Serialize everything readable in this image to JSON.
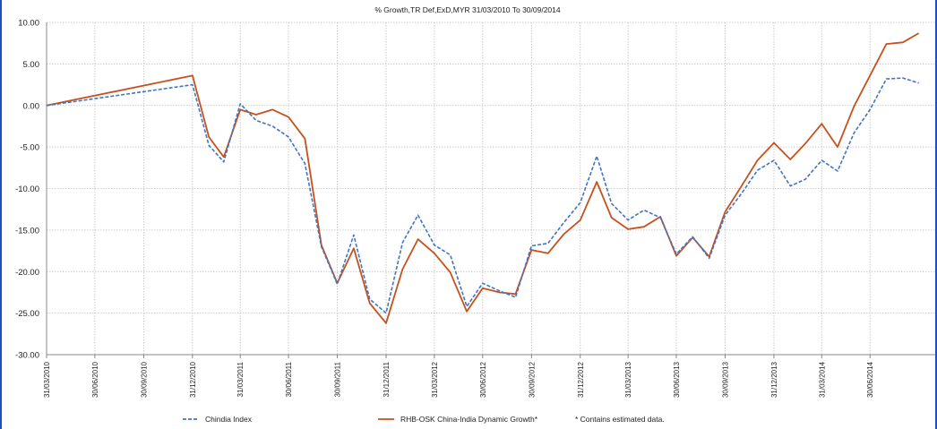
{
  "chart_data": {
    "type": "line",
    "title": "% Growth,TR Def,ExD,MYR 31/03/2010 To 30/09/2014",
    "xlabel": "",
    "ylabel": "",
    "ylim": [
      -30,
      10
    ],
    "yticks": [
      "10.00",
      "5.00",
      "0.00",
      "-5.00",
      "-10.00",
      "-15.00",
      "-20.00",
      "-25.00",
      "-30.00"
    ],
    "xlim": [
      "31/03/2010",
      "31/10/2014"
    ],
    "xticks": [
      "31/03/2010",
      "30/06/2010",
      "30/09/2010",
      "31/12/2010",
      "31/03/2011",
      "30/06/2011",
      "30/09/2011",
      "31/12/2011",
      "31/03/2012",
      "30/06/2012",
      "30/09/2012",
      "31/12/2012",
      "31/03/2013",
      "30/06/2013",
      "30/09/2013",
      "31/12/2013",
      "31/03/2014",
      "30/06/2014"
    ],
    "grid": true,
    "legend_position": "bottom",
    "series": [
      {
        "name": "Chindia Index",
        "color": "#3f74c7",
        "dash": "dashed",
        "points": [
          [
            "31/03/2010",
            0.0
          ],
          [
            "31/12/2010",
            2.5
          ],
          [
            "31/01/2011",
            -4.8
          ],
          [
            "28/02/2011",
            -6.8
          ],
          [
            "31/03/2011",
            0.2
          ],
          [
            "30/04/2011",
            -1.8
          ],
          [
            "31/05/2011",
            -2.5
          ],
          [
            "30/06/2011",
            -3.8
          ],
          [
            "31/07/2011",
            -7.0
          ],
          [
            "31/08/2011",
            -17.0
          ],
          [
            "30/09/2011",
            -21.5
          ],
          [
            "31/10/2011",
            -15.6
          ],
          [
            "30/11/2011",
            -23.3
          ],
          [
            "31/12/2011",
            -25.0
          ],
          [
            "31/01/2012",
            -16.5
          ],
          [
            "29/02/2012",
            -13.2
          ],
          [
            "31/03/2012",
            -16.8
          ],
          [
            "30/04/2012",
            -18.0
          ],
          [
            "31/05/2012",
            -24.2
          ],
          [
            "30/06/2012",
            -21.4
          ],
          [
            "31/07/2012",
            -22.3
          ],
          [
            "31/08/2012",
            -23.1
          ],
          [
            "30/09/2012",
            -16.9
          ],
          [
            "31/10/2012",
            -16.6
          ],
          [
            "30/11/2012",
            -14.1
          ],
          [
            "31/12/2012",
            -11.7
          ],
          [
            "31/01/2013",
            -6.1
          ],
          [
            "28/02/2013",
            -11.8
          ],
          [
            "31/03/2013",
            -13.8
          ],
          [
            "30/04/2013",
            -12.6
          ],
          [
            "31/05/2013",
            -13.5
          ],
          [
            "30/06/2013",
            -17.9
          ],
          [
            "31/07/2013",
            -15.8
          ],
          [
            "31/08/2013",
            -18.4
          ],
          [
            "30/09/2013",
            -13.2
          ],
          [
            "31/10/2013",
            -10.6
          ],
          [
            "30/11/2013",
            -7.8
          ],
          [
            "31/12/2013",
            -6.6
          ],
          [
            "31/01/2014",
            -9.7
          ],
          [
            "28/02/2014",
            -8.9
          ],
          [
            "31/03/2014",
            -6.6
          ],
          [
            "30/04/2014",
            -7.9
          ],
          [
            "31/05/2014",
            -3.3
          ],
          [
            "30/06/2014",
            -0.5
          ],
          [
            "31/07/2014",
            3.2
          ],
          [
            "31/08/2014",
            3.3
          ],
          [
            "30/09/2014",
            2.7
          ]
        ]
      },
      {
        "name": "RHB-OSK China-India Dynamic Growth*",
        "color": "#c5511f",
        "dash": "solid",
        "points": [
          [
            "31/03/2010",
            0.0
          ],
          [
            "31/12/2010",
            3.6
          ],
          [
            "31/01/2011",
            -3.8
          ],
          [
            "28/02/2011",
            -6.2
          ],
          [
            "31/03/2011",
            -0.5
          ],
          [
            "30/04/2011",
            -1.1
          ],
          [
            "31/05/2011",
            -0.5
          ],
          [
            "30/06/2011",
            -1.4
          ],
          [
            "31/07/2011",
            -4.0
          ],
          [
            "31/08/2011",
            -16.8
          ],
          [
            "30/09/2011",
            -21.4
          ],
          [
            "31/10/2011",
            -17.2
          ],
          [
            "30/11/2011",
            -23.8
          ],
          [
            "31/12/2011",
            -26.2
          ],
          [
            "31/01/2012",
            -19.7
          ],
          [
            "29/02/2012",
            -16.1
          ],
          [
            "31/03/2012",
            -17.8
          ],
          [
            "30/04/2012",
            -20.1
          ],
          [
            "31/05/2012",
            -24.8
          ],
          [
            "30/06/2012",
            -22.0
          ],
          [
            "31/07/2012",
            -22.5
          ],
          [
            "31/08/2012",
            -22.7
          ],
          [
            "30/09/2012",
            -17.4
          ],
          [
            "31/10/2012",
            -17.8
          ],
          [
            "30/11/2012",
            -15.5
          ],
          [
            "31/12/2012",
            -13.8
          ],
          [
            "31/01/2013",
            -9.2
          ],
          [
            "28/02/2013",
            -13.5
          ],
          [
            "31/03/2013",
            -14.9
          ],
          [
            "30/04/2013",
            -14.6
          ],
          [
            "31/05/2013",
            -13.4
          ],
          [
            "30/06/2013",
            -18.1
          ],
          [
            "31/07/2013",
            -15.9
          ],
          [
            "31/08/2013",
            -18.2
          ],
          [
            "30/09/2013",
            -12.8
          ],
          [
            "31/10/2013",
            -9.7
          ],
          [
            "30/11/2013",
            -6.6
          ],
          [
            "31/12/2013",
            -4.5
          ],
          [
            "31/01/2014",
            -6.5
          ],
          [
            "28/02/2014",
            -4.6
          ],
          [
            "31/03/2014",
            -2.2
          ],
          [
            "30/04/2014",
            -5.0
          ],
          [
            "31/05/2014",
            -0.1
          ],
          [
            "30/06/2014",
            3.6
          ],
          [
            "31/07/2014",
            7.4
          ],
          [
            "31/08/2014",
            7.6
          ],
          [
            "30/09/2014",
            8.7
          ]
        ]
      }
    ],
    "note": "* Contains estimated data."
  }
}
